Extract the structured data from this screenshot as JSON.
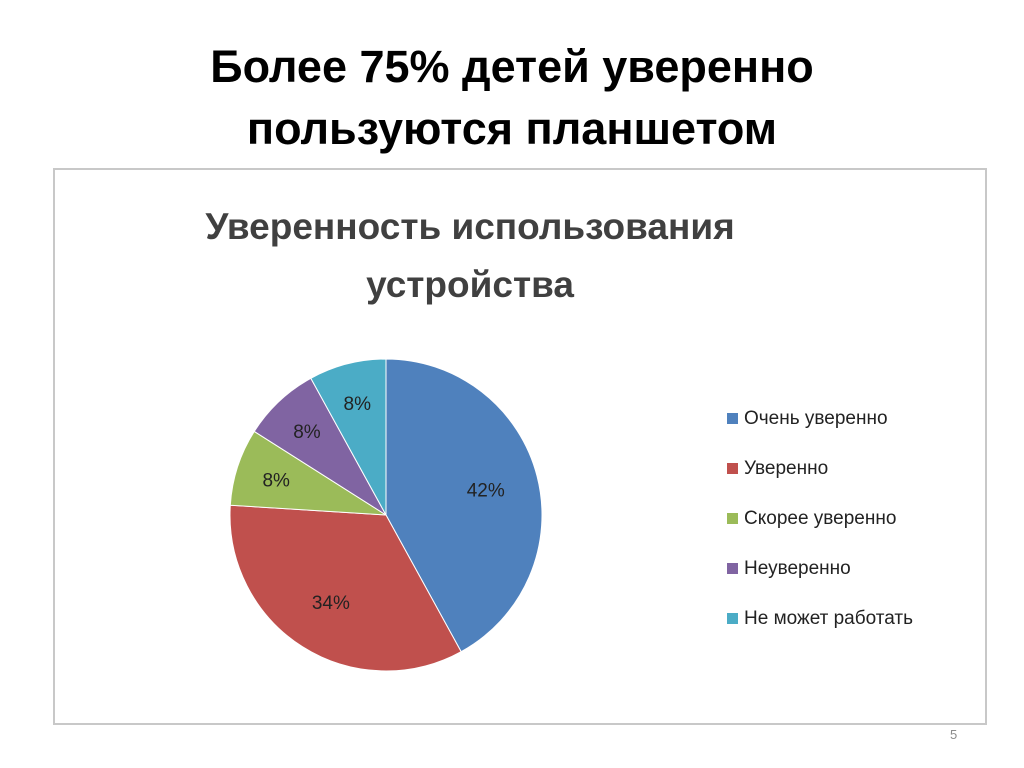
{
  "slide": {
    "title_line1": "Более 75% детей уверенно",
    "title_line2": "пользуются планшетом",
    "number": "5"
  },
  "chart_data": {
    "type": "pie",
    "title_line1": "Уверенность использования",
    "title_line2": "устройства",
    "legend_position": "right",
    "start_angle_deg": 0,
    "direction": "clockwise",
    "slices": [
      {
        "label": "Очень уверенно",
        "value": 42,
        "display": "42%",
        "color": "#4f81bd"
      },
      {
        "label": "Уверенно",
        "value": 34,
        "display": "34%",
        "color": "#c0504d"
      },
      {
        "label": "Скорее уверенно",
        "value": 8,
        "display": "8%",
        "color": "#9bbb59"
      },
      {
        "label": "Неуверенно",
        "value": 8,
        "display": "8%",
        "color": "#8064a2"
      },
      {
        "label": "Не может работать",
        "value": 8,
        "display": "8%",
        "color": "#4bacc6"
      }
    ]
  }
}
